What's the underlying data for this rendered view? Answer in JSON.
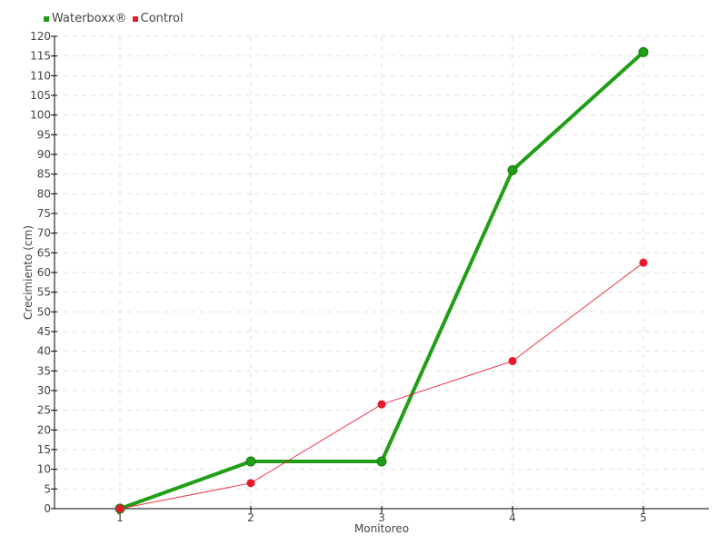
{
  "chart_data": {
    "type": "line",
    "xlabel": "Monitoreo",
    "ylabel": "Crecimiento (cm)",
    "x": [
      1,
      2,
      3,
      4,
      5
    ],
    "xlim": [
      0.5,
      5.5
    ],
    "ylim": [
      0,
      120
    ],
    "ytick_step": 5,
    "grid": true,
    "legend_position": "top-left",
    "series": [
      {
        "name": "Waterboxx®",
        "color": "#1f9e16",
        "values": [
          0,
          12,
          12,
          86,
          116
        ]
      },
      {
        "name": "Control",
        "color": "#e8192c",
        "values": [
          0,
          6.5,
          26.5,
          37.5,
          62.5
        ]
      }
    ]
  }
}
